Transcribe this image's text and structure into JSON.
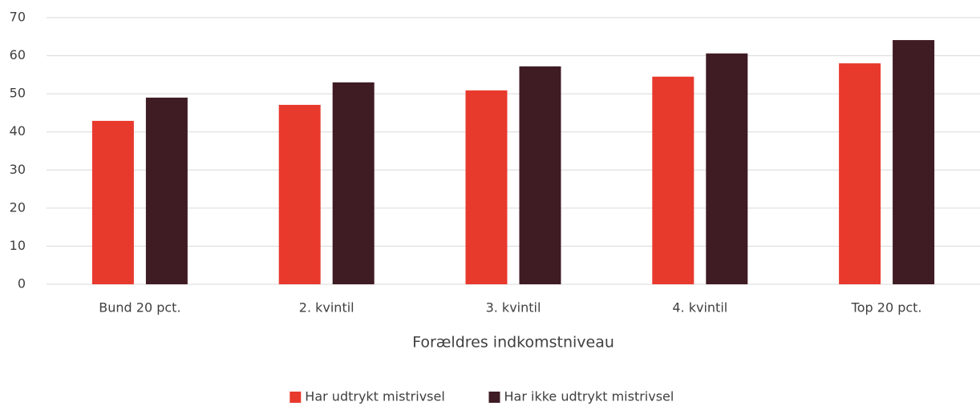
{
  "chart_data": {
    "type": "bar",
    "x_label": "Forældres indkomstniveau",
    "categories": [
      "Bund 20 pct.",
      "2. kvintil",
      "3. kvintil",
      "4. kvintil",
      "Top 20 pct."
    ],
    "series": [
      {
        "name": "Har udtrykt mistrivsel",
        "color": "#e8392d",
        "values": [
          42.9,
          47.1,
          50.9,
          54.5,
          58.0
        ]
      },
      {
        "name": "Har ikke udtrykt mistrivsel",
        "color": "#3f1b24",
        "values": [
          49.0,
          53.0,
          57.2,
          60.6,
          64.1
        ]
      }
    ],
    "ylim": [
      0,
      70
    ],
    "yticks": [
      0,
      10,
      20,
      30,
      40,
      50,
      60,
      70
    ],
    "grid": true,
    "legend": "bottom"
  }
}
